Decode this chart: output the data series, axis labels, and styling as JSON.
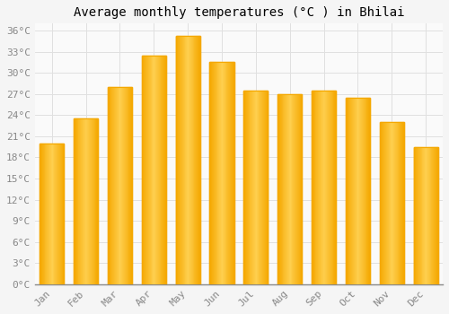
{
  "title": "Average monthly temperatures (°C ) in Bhilai",
  "months": [
    "Jan",
    "Feb",
    "Mar",
    "Apr",
    "May",
    "Jun",
    "Jul",
    "Aug",
    "Sep",
    "Oct",
    "Nov",
    "Dec"
  ],
  "values": [
    20.0,
    23.5,
    28.0,
    32.5,
    35.2,
    31.5,
    27.5,
    27.0,
    27.5,
    26.5,
    23.0,
    19.5
  ],
  "bar_color_left": "#F5A800",
  "bar_color_center": "#FFD050",
  "bar_color_right": "#F5A800",
  "background_color": "#F5F5F5",
  "plot_bg_color": "#FAFAFA",
  "grid_color": "#E0E0E0",
  "axis_color": "#888888",
  "ytick_step": 3,
  "ymax": 37,
  "title_fontsize": 10,
  "tick_fontsize": 8,
  "font_family": "monospace"
}
